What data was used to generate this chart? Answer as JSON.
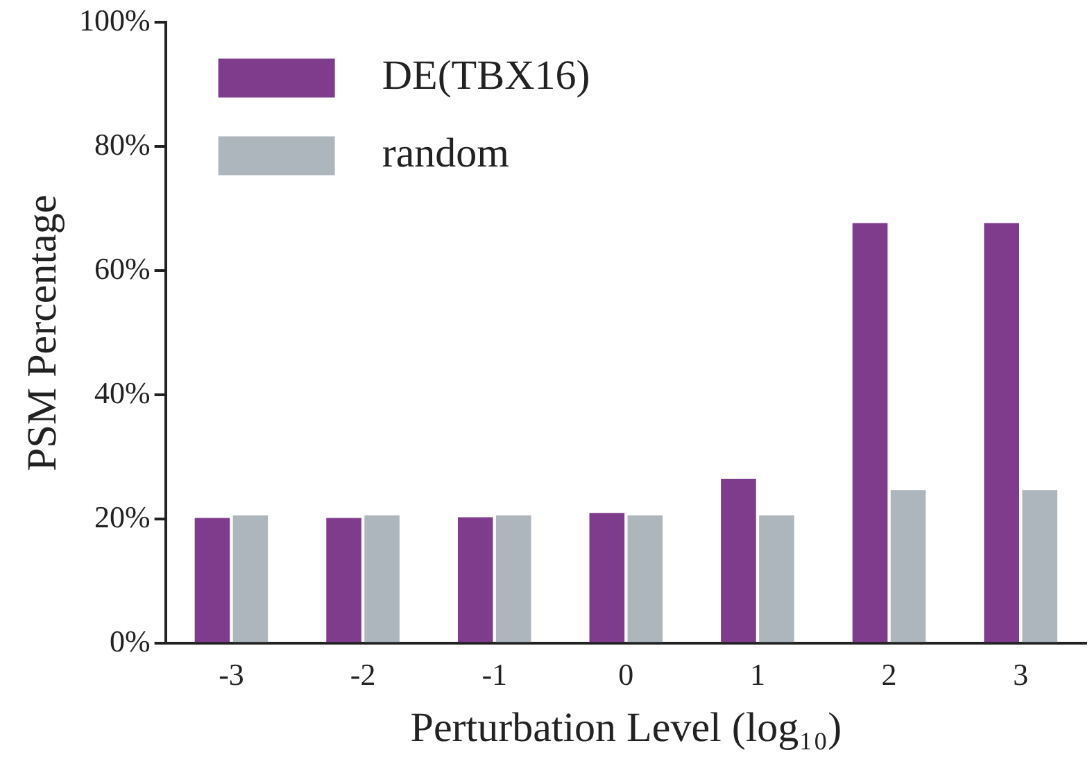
{
  "chart_data": {
    "type": "bar",
    "xlabel": "Perturbation Level (log₁₀)",
    "ylabel": "PSM Percentage",
    "categories": [
      "-3",
      "-2",
      "-1",
      "0",
      "1",
      "2",
      "3"
    ],
    "series": [
      {
        "name": "DE(TBX16)",
        "color": "#7f3b8c",
        "values": [
          20.2,
          20.2,
          20.3,
          21.0,
          26.5,
          67.7,
          67.7
        ]
      },
      {
        "name": "random",
        "color": "#adb5bd",
        "values": [
          20.6,
          20.6,
          20.6,
          20.6,
          20.6,
          24.7,
          24.7
        ]
      }
    ],
    "ylim": [
      0,
      100
    ],
    "yticks": [
      {
        "value": 0,
        "label": "0%"
      },
      {
        "value": 20,
        "label": "20%"
      },
      {
        "value": 40,
        "label": "40%"
      },
      {
        "value": 60,
        "label": "60%"
      },
      {
        "value": 80,
        "label": "80%"
      },
      {
        "value": 100,
        "label": "100%"
      }
    ],
    "grid": false,
    "legend": "top left"
  }
}
